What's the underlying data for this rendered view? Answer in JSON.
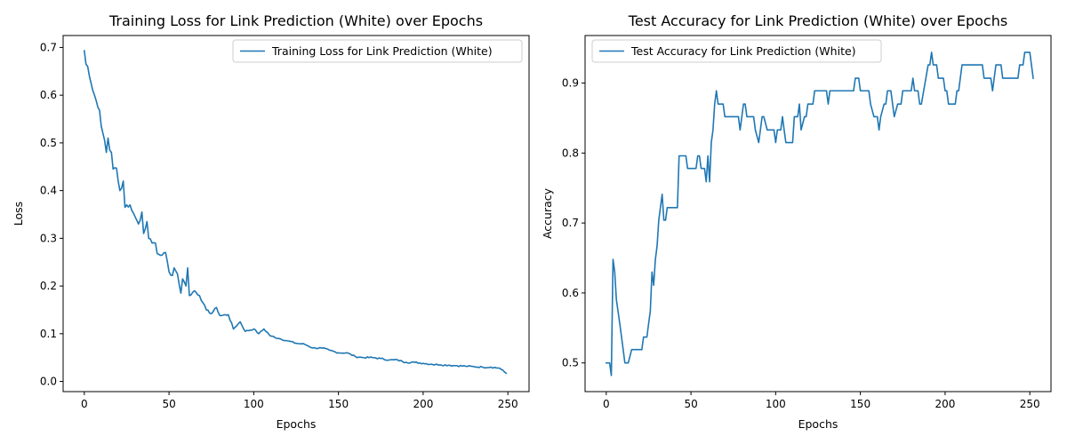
{
  "chart_data": [
    {
      "type": "line",
      "title": "Training Loss for Link Prediction (White) over Epochs",
      "xlabel": "Epochs",
      "ylabel": "Loss",
      "xlim": [
        -12.5,
        262.5
      ],
      "ylim": [
        -0.0213,
        0.725
      ],
      "xticks": [
        0,
        50,
        100,
        150,
        200,
        250
      ],
      "yticks": [
        0.0,
        0.1,
        0.2,
        0.3,
        0.4,
        0.5,
        0.6,
        0.7
      ],
      "ytick_labels": [
        "0.0",
        "0.1",
        "0.2",
        "0.3",
        "0.4",
        "0.5",
        "0.6",
        "0.7"
      ],
      "legend_position": "upper right",
      "color": "#1f77b4",
      "series": [
        {
          "name": "Training Loss for Link Prediction (White)",
          "anchors": [
            [
              0,
              0.693
            ],
            [
              1,
              0.665
            ],
            [
              2,
              0.66
            ],
            [
              3,
              0.64
            ],
            [
              5,
              0.61
            ],
            [
              6,
              0.6
            ],
            [
              8,
              0.575
            ],
            [
              9,
              0.568
            ],
            [
              10,
              0.535
            ],
            [
              11,
              0.52
            ],
            [
              12,
              0.505
            ],
            [
              13,
              0.48
            ],
            [
              14,
              0.51
            ],
            [
              15,
              0.485
            ],
            [
              16,
              0.48
            ],
            [
              17,
              0.445
            ],
            [
              18,
              0.448
            ],
            [
              19,
              0.447
            ],
            [
              20,
              0.42
            ],
            [
              21,
              0.4
            ],
            [
              22,
              0.405
            ],
            [
              23,
              0.42
            ],
            [
              24,
              0.365
            ],
            [
              25,
              0.37
            ],
            [
              27,
              0.37
            ],
            [
              30,
              0.345
            ],
            [
              32,
              0.33
            ],
            [
              34,
              0.355
            ],
            [
              35,
              0.31
            ],
            [
              36,
              0.32
            ],
            [
              37,
              0.335
            ],
            [
              38,
              0.3
            ],
            [
              40,
              0.29
            ],
            [
              42,
              0.29
            ],
            [
              43,
              0.268
            ],
            [
              46,
              0.265
            ],
            [
              48,
              0.27
            ],
            [
              50,
              0.23
            ],
            [
              52,
              0.222
            ],
            [
              53,
              0.238
            ],
            [
              55,
              0.225
            ],
            [
              57,
              0.185
            ],
            [
              58,
              0.215
            ],
            [
              60,
              0.2
            ],
            [
              61,
              0.238
            ],
            [
              62,
              0.18
            ],
            [
              65,
              0.19
            ],
            [
              68,
              0.18
            ],
            [
              70,
              0.165
            ],
            [
              72,
              0.15
            ],
            [
              75,
              0.142
            ],
            [
              78,
              0.155
            ],
            [
              80,
              0.138
            ],
            [
              85,
              0.14
            ],
            [
              88,
              0.11
            ],
            [
              92,
              0.125
            ],
            [
              95,
              0.105
            ],
            [
              100,
              0.11
            ],
            [
              103,
              0.1
            ],
            [
              106,
              0.11
            ],
            [
              110,
              0.095
            ],
            [
              115,
              0.09
            ],
            [
              120,
              0.085
            ],
            [
              125,
              0.08
            ],
            [
              130,
              0.078
            ],
            [
              135,
              0.07
            ],
            [
              140,
              0.07
            ],
            [
              145,
              0.065
            ],
            [
              150,
              0.06
            ],
            [
              155,
              0.06
            ],
            [
              160,
              0.052
            ],
            [
              165,
              0.05
            ],
            [
              170,
              0.05
            ],
            [
              175,
              0.048
            ],
            [
              180,
              0.045
            ],
            [
              185,
              0.045
            ],
            [
              190,
              0.04
            ],
            [
              195,
              0.04
            ],
            [
              200,
              0.038
            ],
            [
              205,
              0.036
            ],
            [
              210,
              0.035
            ],
            [
              215,
              0.034
            ],
            [
              220,
              0.033
            ],
            [
              225,
              0.032
            ],
            [
              230,
              0.031
            ],
            [
              235,
              0.03
            ],
            [
              240,
              0.03
            ],
            [
              245,
              0.028
            ],
            [
              249,
              0.017
            ]
          ]
        }
      ]
    },
    {
      "type": "line",
      "title": "Test Accuracy for Link Prediction (White) over Epochs",
      "xlabel": "Epochs",
      "ylabel": "Accuracy",
      "xlim": [
        -12.5,
        262.5
      ],
      "ylim": [
        0.459,
        0.968
      ],
      "xticks": [
        0,
        50,
        100,
        150,
        200,
        250
      ],
      "yticks": [
        0.5,
        0.6,
        0.7,
        0.8,
        0.9
      ],
      "ytick_labels": [
        "0.5",
        "0.6",
        "0.7",
        "0.8",
        "0.9"
      ],
      "legend_position": "upper left",
      "color": "#1f77b4",
      "series": [
        {
          "name": "Test Accuracy for Link Prediction (White)",
          "anchors": [
            [
              0,
              0.5
            ],
            [
              2,
              0.5
            ],
            [
              3,
              0.482
            ],
            [
              4,
              0.648
            ],
            [
              5,
              0.63
            ],
            [
              6,
              0.59
            ],
            [
              8,
              0.556
            ],
            [
              10,
              0.519
            ],
            [
              11,
              0.5
            ],
            [
              13,
              0.5
            ],
            [
              15,
              0.519
            ],
            [
              21,
              0.519
            ],
            [
              22,
              0.537
            ],
            [
              24,
              0.537
            ],
            [
              25,
              0.556
            ],
            [
              26,
              0.574
            ],
            [
              27,
              0.63
            ],
            [
              28,
              0.611
            ],
            [
              29,
              0.648
            ],
            [
              30,
              0.667
            ],
            [
              31,
              0.704
            ],
            [
              33,
              0.741
            ],
            [
              34,
              0.704
            ],
            [
              35,
              0.704
            ],
            [
              36,
              0.722
            ],
            [
              42,
              0.722
            ],
            [
              43,
              0.796
            ],
            [
              47,
              0.796
            ],
            [
              48,
              0.778
            ],
            [
              53,
              0.778
            ],
            [
              54,
              0.796
            ],
            [
              55,
              0.796
            ],
            [
              56,
              0.778
            ],
            [
              58,
              0.778
            ],
            [
              59,
              0.759
            ],
            [
              60,
              0.796
            ],
            [
              61,
              0.759
            ],
            [
              62,
              0.815
            ],
            [
              63,
              0.833
            ],
            [
              64,
              0.87
            ],
            [
              65,
              0.889
            ],
            [
              66,
              0.87
            ],
            [
              69,
              0.87
            ],
            [
              70,
              0.852
            ],
            [
              78,
              0.852
            ],
            [
              79,
              0.833
            ],
            [
              81,
              0.87
            ],
            [
              82,
              0.87
            ],
            [
              83,
              0.852
            ],
            [
              87,
              0.852
            ],
            [
              88,
              0.833
            ],
            [
              90,
              0.815
            ],
            [
              92,
              0.852
            ],
            [
              93,
              0.852
            ],
            [
              95,
              0.833
            ],
            [
              99,
              0.833
            ],
            [
              100,
              0.815
            ],
            [
              101,
              0.833
            ],
            [
              103,
              0.833
            ],
            [
              104,
              0.852
            ],
            [
              105,
              0.833
            ],
            [
              106,
              0.815
            ],
            [
              110,
              0.815
            ],
            [
              111,
              0.852
            ],
            [
              113,
              0.852
            ],
            [
              114,
              0.87
            ],
            [
              115,
              0.833
            ],
            [
              117,
              0.852
            ],
            [
              118,
              0.852
            ],
            [
              119,
              0.87
            ],
            [
              122,
              0.87
            ],
            [
              123,
              0.889
            ],
            [
              130,
              0.889
            ],
            [
              131,
              0.87
            ],
            [
              132,
              0.889
            ],
            [
              146,
              0.889
            ],
            [
              147,
              0.907
            ],
            [
              149,
              0.907
            ],
            [
              150,
              0.889
            ],
            [
              155,
              0.889
            ],
            [
              156,
              0.87
            ],
            [
              158,
              0.852
            ],
            [
              160,
              0.852
            ],
            [
              161,
              0.833
            ],
            [
              162,
              0.852
            ],
            [
              164,
              0.87
            ],
            [
              165,
              0.87
            ],
            [
              166,
              0.889
            ],
            [
              168,
              0.889
            ],
            [
              169,
              0.87
            ],
            [
              170,
              0.852
            ],
            [
              172,
              0.87
            ],
            [
              174,
              0.87
            ],
            [
              175,
              0.889
            ],
            [
              180,
              0.889
            ],
            [
              181,
              0.907
            ],
            [
              182,
              0.889
            ],
            [
              184,
              0.889
            ],
            [
              185,
              0.87
            ],
            [
              186,
              0.87
            ],
            [
              190,
              0.926
            ],
            [
              191,
              0.926
            ],
            [
              192,
              0.944
            ],
            [
              193,
              0.926
            ],
            [
              195,
              0.926
            ],
            [
              196,
              0.907
            ],
            [
              199,
              0.907
            ],
            [
              200,
              0.889
            ],
            [
              201,
              0.889
            ],
            [
              202,
              0.87
            ],
            [
              206,
              0.87
            ],
            [
              207,
              0.889
            ],
            [
              208,
              0.889
            ],
            [
              210,
              0.926
            ],
            [
              222,
              0.926
            ],
            [
              223,
              0.907
            ],
            [
              227,
              0.907
            ],
            [
              228,
              0.889
            ],
            [
              230,
              0.926
            ],
            [
              233,
              0.926
            ],
            [
              234,
              0.907
            ],
            [
              243,
              0.907
            ],
            [
              244,
              0.926
            ],
            [
              246,
              0.926
            ],
            [
              247,
              0.944
            ],
            [
              250,
              0.944
            ],
            [
              252,
              0.907
            ]
          ]
        }
      ]
    }
  ]
}
